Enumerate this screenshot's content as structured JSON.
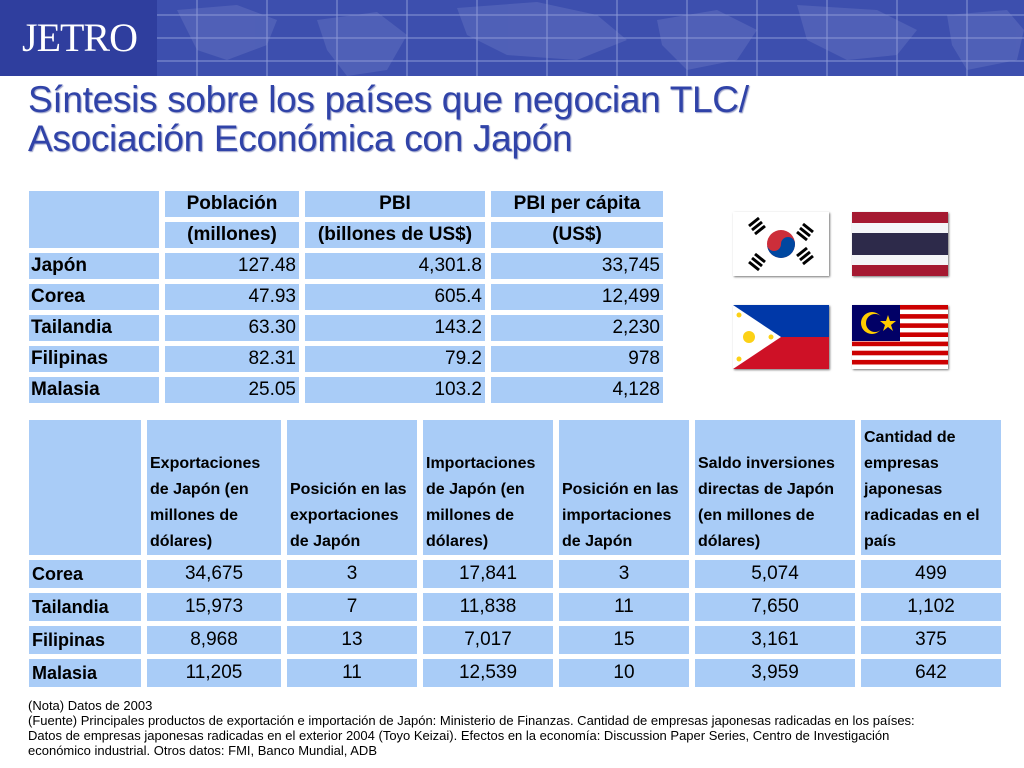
{
  "logo": "JETRO",
  "title": [
    "Síntesis sobre los países que negocian TLC/",
    "Asociación Económica con Japón"
  ],
  "table1": {
    "headers": [
      "Población",
      "PBI",
      "PBI per cápita"
    ],
    "units": [
      "(millones)",
      "(billones de US$)",
      "(US$)"
    ],
    "rows": [
      {
        "country": "Japón",
        "values": [
          "127.48",
          "4,301.8",
          "33,745"
        ]
      },
      {
        "country": "Corea",
        "values": [
          "47.93",
          "605.4",
          "12,499"
        ]
      },
      {
        "country": "Tailandia",
        "values": [
          "63.30",
          "143.2",
          "2,230"
        ]
      },
      {
        "country": "Filipinas",
        "values": [
          "82.31",
          "79.2",
          "978"
        ]
      },
      {
        "country": "Malasia",
        "values": [
          "25.05",
          "103.2",
          "4,128"
        ]
      }
    ]
  },
  "table2": {
    "headers": [
      "Exportaciones de Japón (en millones de dólares)",
      "Posición en las exportaciones de Japón",
      "Importaciones de Japón (en millones de dólares)",
      "Posición en las importaciones de Japón",
      "Saldo inversiones directas de Japón (en millones de dólares)",
      "Cantidad de empresas japonesas radicadas en el país"
    ],
    "rows": [
      {
        "country": "Corea",
        "values": [
          "34,675",
          "3",
          "17,841",
          "3",
          "5,074",
          "499"
        ]
      },
      {
        "country": "Tailandia",
        "values": [
          "15,973",
          "7",
          "11,838",
          "11",
          "7,650",
          "1,102"
        ]
      },
      {
        "country": "Filipinas",
        "values": [
          "8,968",
          "13",
          "7,017",
          "15",
          "3,161",
          "375"
        ]
      },
      {
        "country": "Malasia",
        "values": [
          "11,205",
          "11",
          "12,539",
          "10",
          "3,959",
          "642"
        ]
      }
    ]
  },
  "flags": [
    "south-korea-flag",
    "thailand-flag",
    "philippines-flag",
    "malaysia-flag"
  ],
  "notes": [
    "(Nota) Datos de 2003",
    "(Fuente) Principales productos de exportación e importación de Japón: Ministerio de Finanzas. Cantidad de empresas japonesas radicadas en los países:",
    "Datos de empresas japonesas radicadas en el exterior 2004 (Toyo Keizai). Efectos en la economía: Discussion Paper Series, Centro de Investigación",
    "económico industrial. Otros datos: FMI, Banco Mundial, ADB"
  ],
  "colors": {
    "header": "#3d4fae",
    "title": "#3043a8",
    "cell": "#a9ccf7"
  }
}
